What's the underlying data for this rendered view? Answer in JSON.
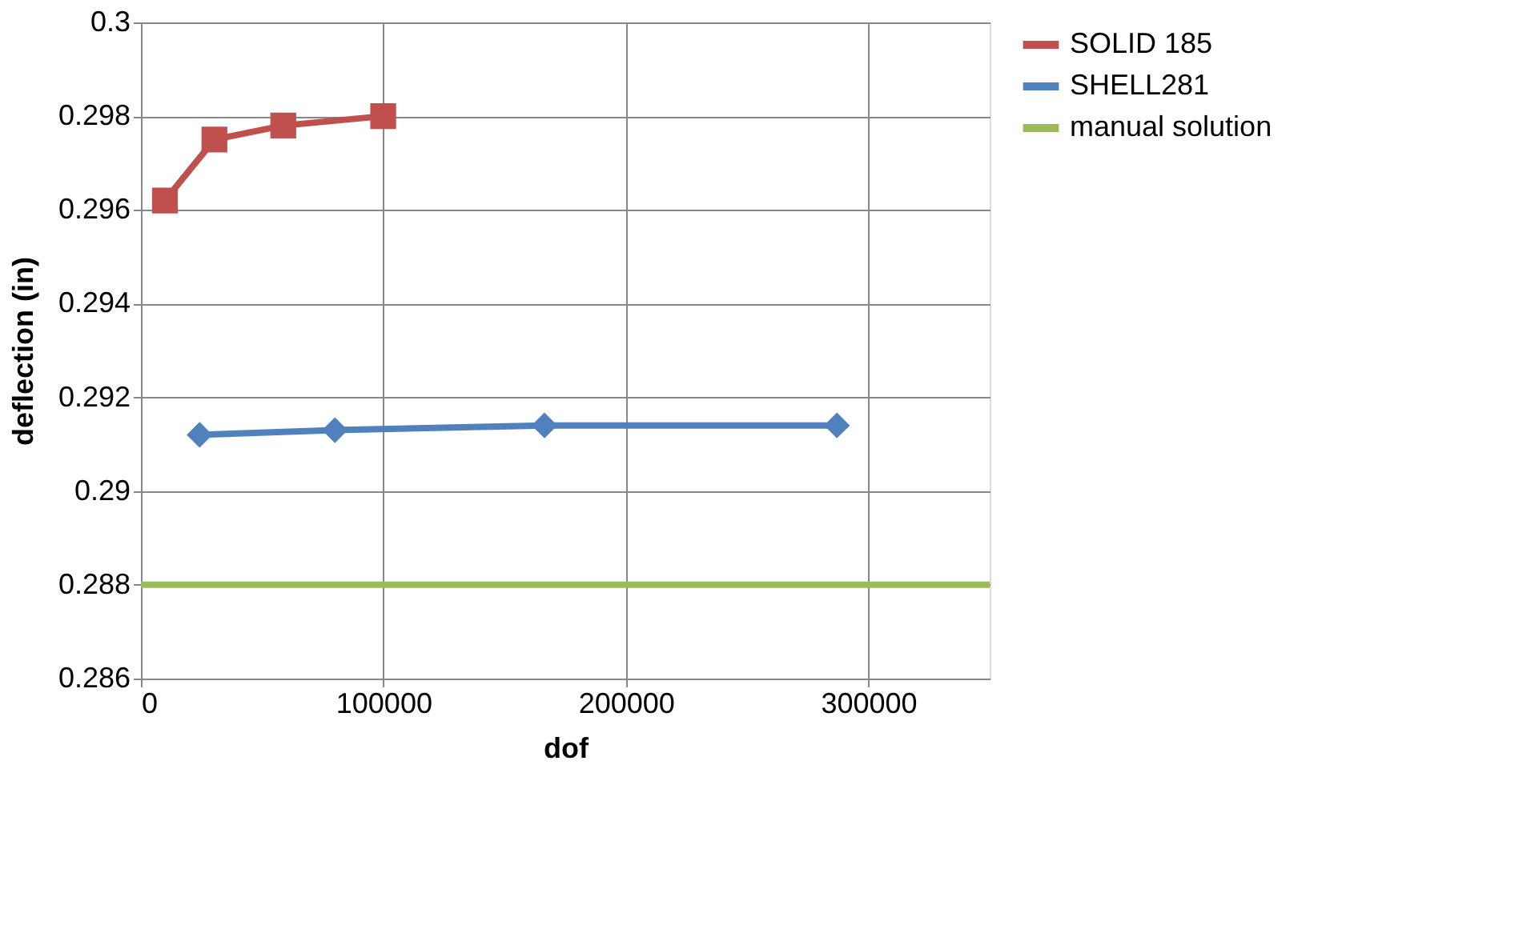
{
  "chart_data": {
    "type": "line",
    "xlabel": "dof",
    "ylabel": "deflection (in)",
    "xlim": [
      0,
      350000
    ],
    "xticks": [
      0,
      100000,
      200000,
      300000
    ],
    "ylim": [
      0.286,
      0.3
    ],
    "yticks": [
      0.286,
      0.288,
      0.29,
      0.292,
      0.294,
      0.296,
      0.298,
      0.3
    ],
    "grid": true,
    "legend": "right",
    "line_style": "solid",
    "series": [
      {
        "name": "SOLID 185",
        "color": "#c0504d",
        "marker": "square",
        "x": [
          9900,
          30300,
          58700,
          99900
        ],
        "values": [
          0.2962,
          0.2975,
          0.2978,
          0.298
        ]
      },
      {
        "name": "SHELL281",
        "color": "#4f81bd",
        "marker": "diamond",
        "x": [
          24200,
          80000,
          166400,
          287000
        ],
        "values": [
          0.2912,
          0.2913,
          0.2914,
          0.2914
        ]
      }
    ],
    "ref_lines": [
      {
        "axis": "y",
        "value": 0.288,
        "label": "manual solution",
        "color": "#9bbb59"
      }
    ]
  }
}
